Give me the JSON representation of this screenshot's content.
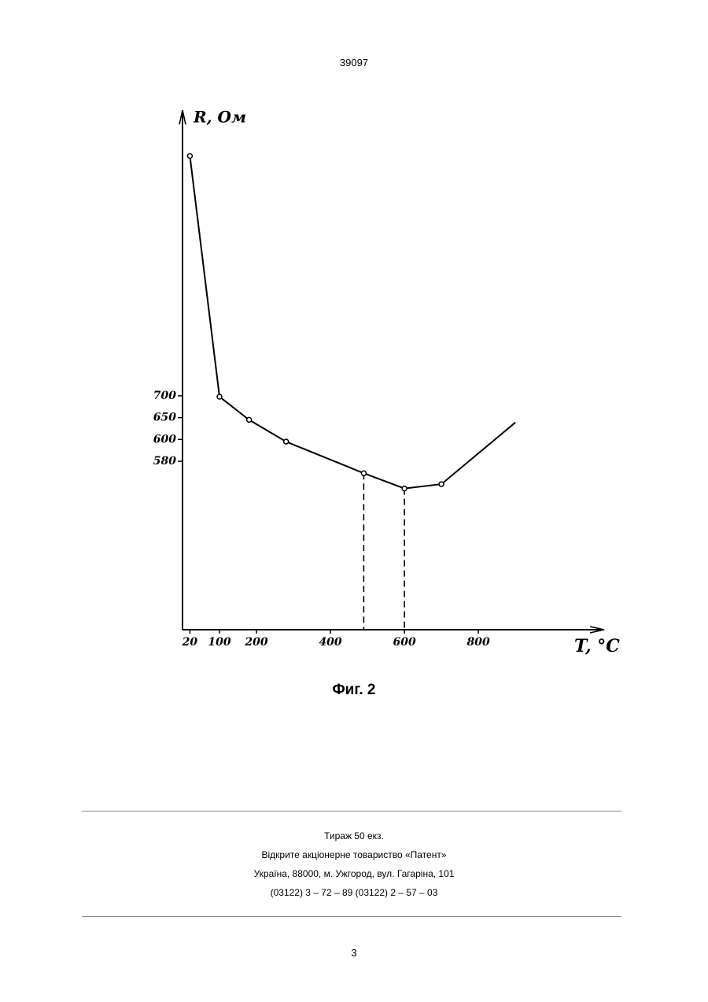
{
  "header": {
    "number": "39097"
  },
  "chart_data": {
    "type": "line",
    "y_label": "R, Ом",
    "x_label": "T, °C",
    "x": [
      20,
      100,
      180,
      280,
      490,
      600,
      700,
      900
    ],
    "series": [
      {
        "name": "R",
        "color": "#000000",
        "values": [
          1250,
          698,
          645,
          598,
          569,
          555,
          559,
          639
        ],
        "markers": [
          true,
          true,
          true,
          true,
          true,
          true,
          true,
          false
        ]
      }
    ],
    "xlim": [
      0,
      1140
    ],
    "xticks": [
      20,
      100,
      200,
      400,
      600,
      800
    ],
    "yticks": [
      580,
      600,
      650,
      700
    ]
  },
  "caption": "Фиг. 2",
  "footer": [
    "Тираж 50 екз.",
    "Відкрите акціонерне товариство «Патент»",
    "Україна, 88000, м. Ужгород, вул. Гагаріна, 101",
    "(03122) 3 – 72 – 89   (03122) 2 – 57 – 03"
  ],
  "page_number": "3"
}
